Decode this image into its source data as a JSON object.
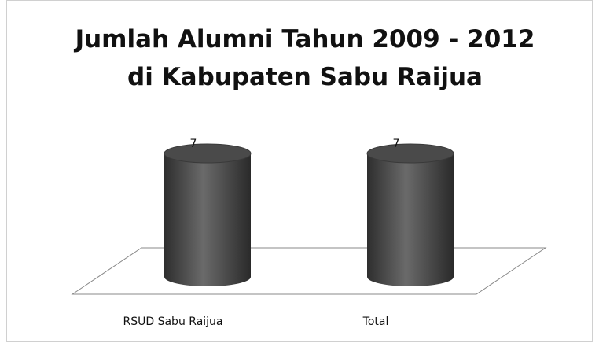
{
  "chart_data": {
    "type": "bar3d",
    "title": [
      "Jumlah Alumni Tahun 2009 - 2012",
      "di Kabupaten Sabu Raijua"
    ],
    "categories": [
      "RSUD Sabu Raijua",
      "Total"
    ],
    "values": [
      7,
      7
    ],
    "color": "#4a4a4a"
  }
}
